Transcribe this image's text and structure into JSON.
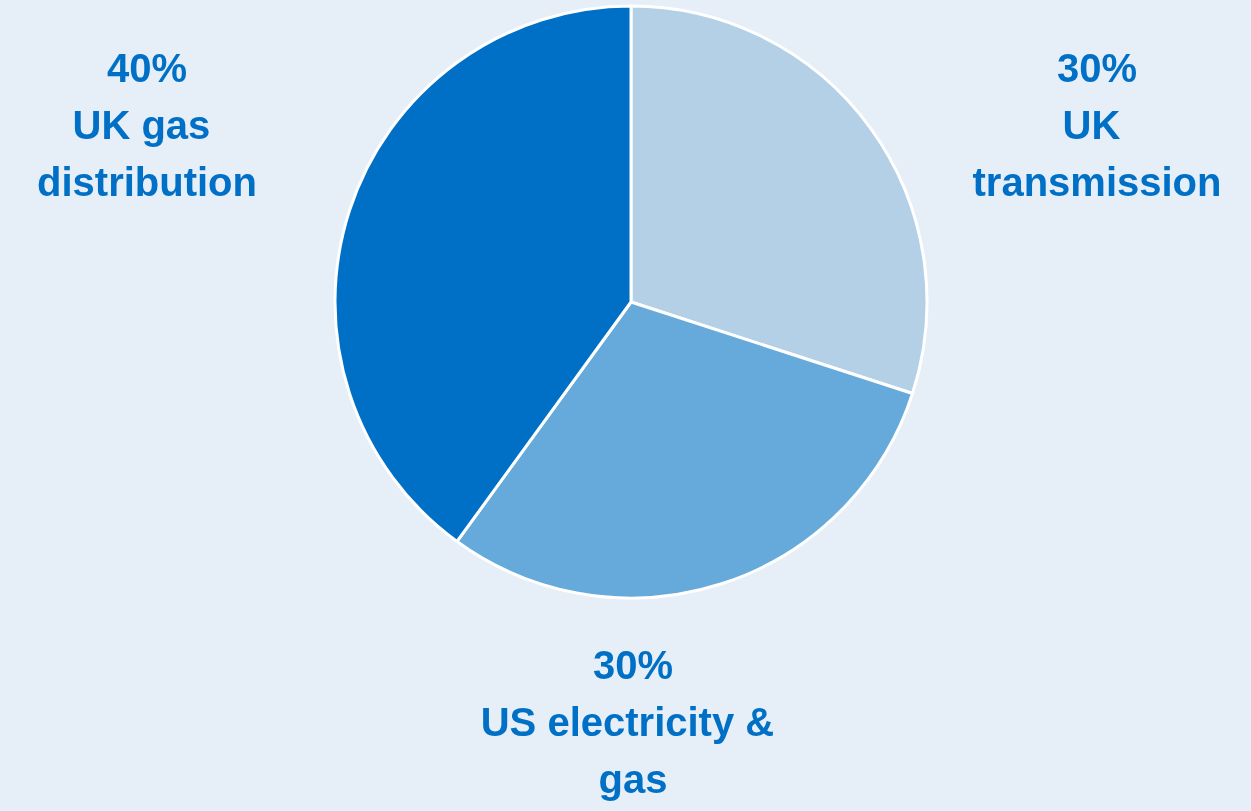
{
  "chart_data": {
    "type": "pie",
    "categories": [
      "UK transmission",
      "US electricity & gas",
      "UK gas distribution"
    ],
    "values": [
      30,
      30,
      40
    ],
    "colors": [
      "#b4d0e6",
      "#66aadb",
      "#0070c6"
    ],
    "value_labels": [
      "30%",
      "30%",
      "40%"
    ],
    "legend": false
  }
}
